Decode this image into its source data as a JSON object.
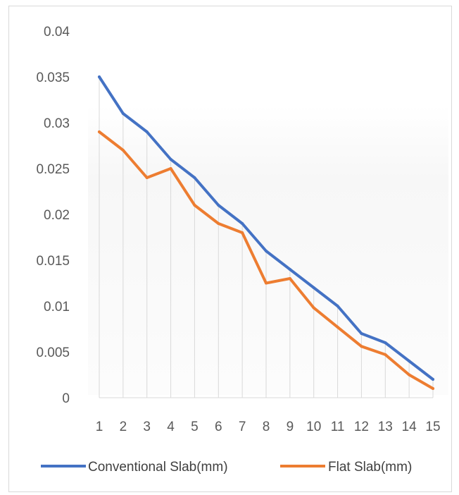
{
  "chart_data": {
    "type": "line",
    "title": "",
    "xlabel": "",
    "ylabel": "",
    "categories": [
      "1",
      "2",
      "3",
      "4",
      "5",
      "6",
      "7",
      "8",
      "9",
      "10",
      "11",
      "12",
      "13",
      "14",
      "15"
    ],
    "ylim": [
      0,
      0.04
    ],
    "y_ticks": [
      "0",
      "0.005",
      "0.01",
      "0.015",
      "0.02",
      "0.025",
      "0.03",
      "0.035",
      "0.04"
    ],
    "grid": "vertical",
    "legend_position": "bottom",
    "series": [
      {
        "name": "Conventional Slab(mm)",
        "color": "#4472c4",
        "values": [
          0.035,
          0.031,
          0.029,
          0.026,
          0.024,
          0.021,
          0.019,
          0.016,
          0.014,
          0.012,
          0.01,
          0.007,
          0.006,
          0.004,
          0.002
        ]
      },
      {
        "name": "Flat Slab(mm)",
        "color": "#ed7d31",
        "values": [
          0.029,
          0.027,
          0.024,
          0.025,
          0.021,
          0.019,
          0.018,
          0.0125,
          0.013,
          0.0098,
          0.0077,
          0.0056,
          0.0047,
          0.0025,
          0.001
        ]
      }
    ]
  }
}
